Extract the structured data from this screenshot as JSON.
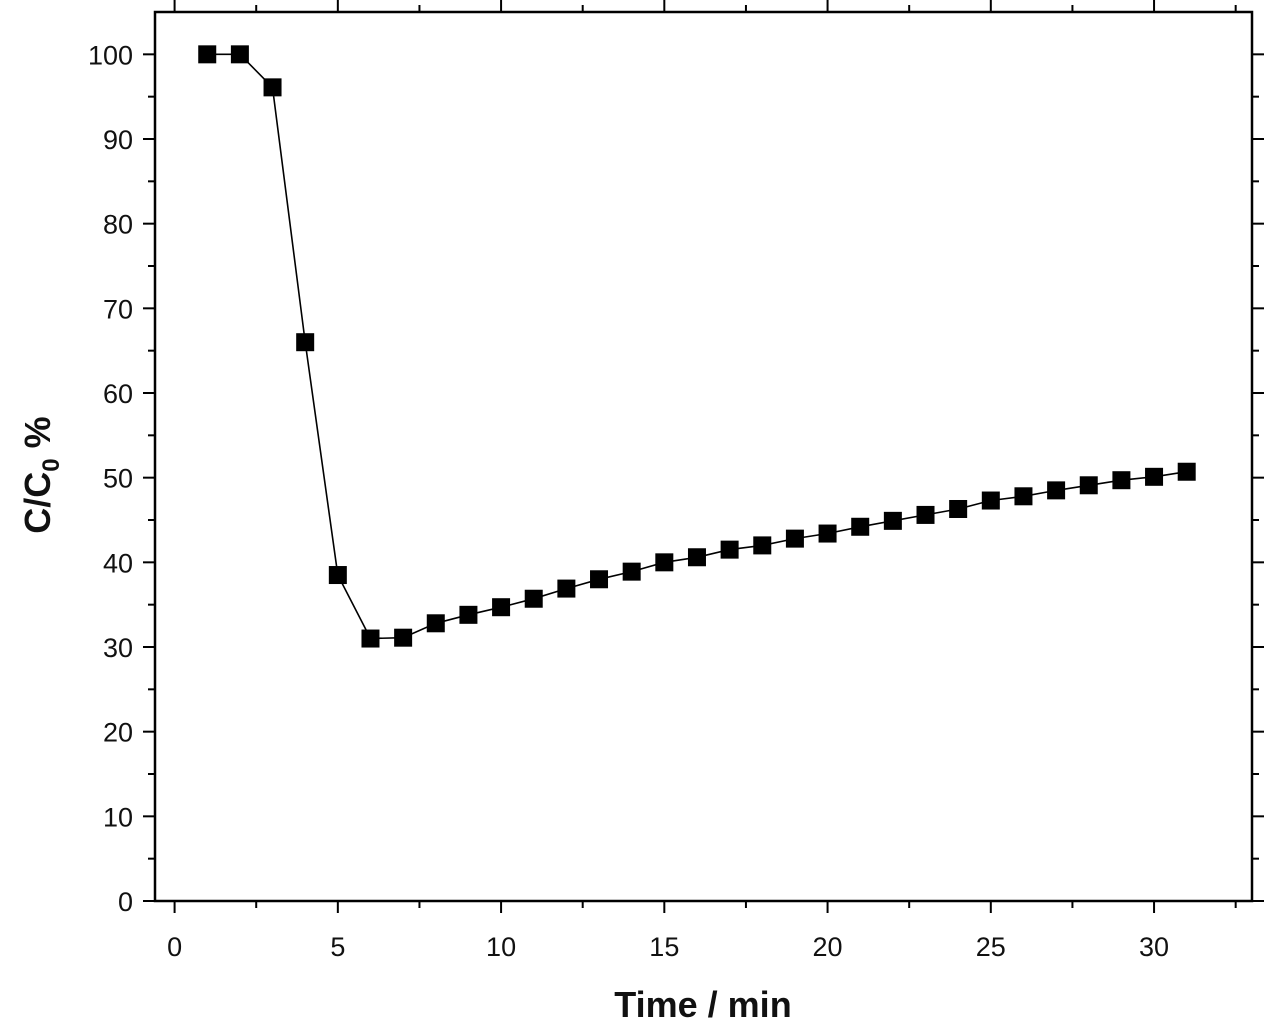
{
  "chart_data": {
    "type": "line",
    "title": "",
    "xlabel": "Time / min",
    "ylabel": {
      "main": "C/C",
      "subscript": "0",
      "suffix": " %"
    },
    "xlim": [
      -0.6,
      33
    ],
    "ylim": [
      0,
      105
    ],
    "xticks": [
      0,
      5,
      10,
      15,
      20,
      25,
      30
    ],
    "yticks": [
      0,
      10,
      20,
      30,
      40,
      50,
      60,
      70,
      80,
      90,
      100
    ],
    "x_minor_step": 2.5,
    "y_minor_step": 5,
    "grid": false,
    "legend": "none",
    "marker": "square",
    "color": "#000000",
    "series": [
      {
        "x": [
          1,
          2,
          3,
          4,
          5,
          6,
          7,
          8,
          9,
          10,
          11,
          12,
          13,
          14,
          15,
          16,
          17,
          18,
          19,
          20,
          21,
          22,
          23,
          24,
          25,
          26,
          27,
          28,
          29,
          30,
          31
        ],
        "values": [
          100,
          100,
          96.1,
          66,
          38.5,
          31,
          31.1,
          32.8,
          33.8,
          34.7,
          35.7,
          36.9,
          38,
          38.9,
          40,
          40.6,
          41.5,
          42,
          42.8,
          43.4,
          44.2,
          44.9,
          45.6,
          46.3,
          47.3,
          47.8,
          48.5,
          49.1,
          49.7,
          50.1,
          50.7
        ]
      }
    ]
  }
}
